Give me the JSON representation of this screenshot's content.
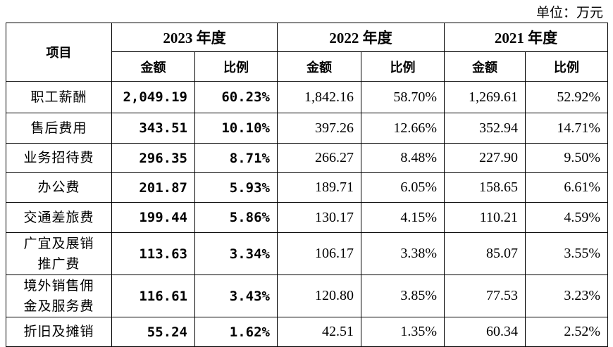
{
  "unit": "单位：万元",
  "table": {
    "item_header": "项目",
    "years": [
      "2023 年度",
      "2022 年度",
      "2021 年度"
    ],
    "sub_headers": [
      "金额",
      "比例",
      "金额",
      "比例",
      "金额",
      "比例"
    ],
    "rows": [
      [
        "职工薪酬",
        "2,049.19",
        "60.23%",
        "1,842.16",
        "58.70%",
        "1,269.61",
        "52.92%"
      ],
      [
        "售后费用",
        "343.51",
        "10.10%",
        "397.26",
        "12.66%",
        "352.94",
        "14.71%"
      ],
      [
        "业务招待费",
        "296.35",
        "8.71%",
        "266.27",
        "8.48%",
        "227.90",
        "9.50%"
      ],
      [
        "办公费",
        "201.87",
        "5.93%",
        "189.71",
        "6.05%",
        "158.65",
        "6.61%"
      ],
      [
        "交通差旅费",
        "199.44",
        "5.86%",
        "130.17",
        "4.15%",
        "110.21",
        "4.59%"
      ],
      [
        "广宜及展销推广费",
        "113.63",
        "3.34%",
        "106.17",
        "3.38%",
        "85.07",
        "3.55%"
      ],
      [
        "境外销售佣金及服务费",
        "116.61",
        "3.43%",
        "120.80",
        "3.85%",
        "77.53",
        "3.23%"
      ],
      [
        "折旧及摊销",
        "55.24",
        "1.62%",
        "42.51",
        "1.35%",
        "60.34",
        "2.52%"
      ]
    ]
  }
}
